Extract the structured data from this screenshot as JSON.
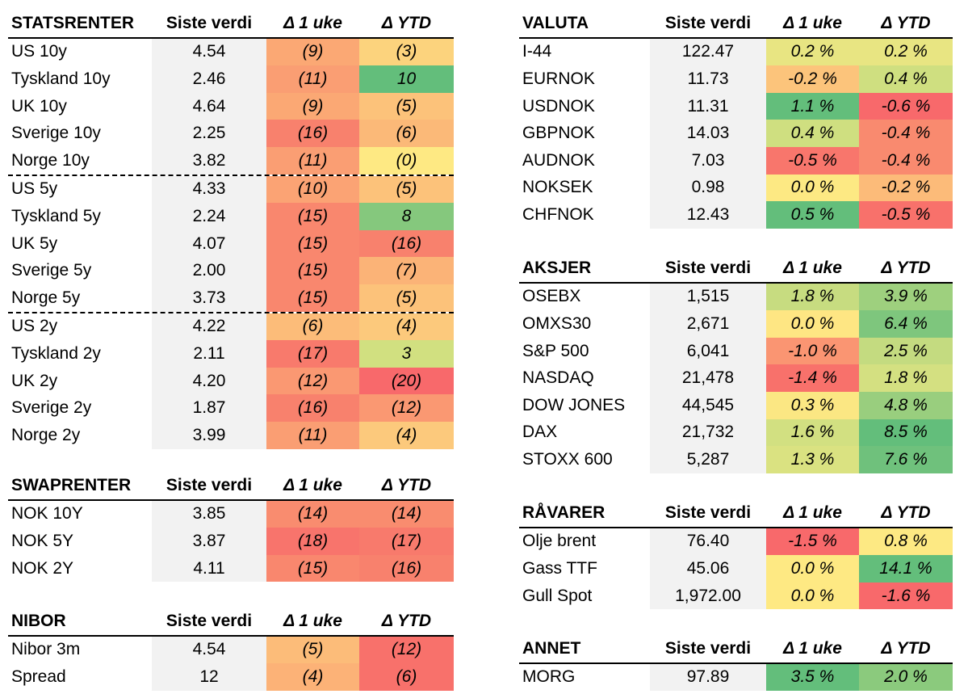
{
  "left_tables": [
    {
      "id": "statsrenter",
      "header": {
        "name": "STATSRENTER",
        "value": "Siste verdi",
        "d1": "Δ 1 uke",
        "d2": "Δ YTD"
      },
      "dashed_after": [
        4,
        9
      ],
      "rows": [
        {
          "name": "US 10y",
          "value": "4.54",
          "d1": "(9)",
          "d2": "(3)",
          "c1": "#fba874",
          "c2": "#fcd37d"
        },
        {
          "name": "Tyskland 10y",
          "value": "2.46",
          "d1": "(11)",
          "d2": "10",
          "c1": "#fa9e73",
          "c2": "#63be7b"
        },
        {
          "name": "UK 10y",
          "value": "4.64",
          "d1": "(9)",
          "d2": "(5)",
          "c1": "#fba874",
          "c2": "#fcc27a"
        },
        {
          "name": "Sverige 10y",
          "value": "2.25",
          "d1": "(16)",
          "d2": "(6)",
          "c1": "#f8816d",
          "c2": "#fbb978"
        },
        {
          "name": "Norge 10y",
          "value": "3.82",
          "d1": "(11)",
          "d2": "(0)",
          "c1": "#fa9e73",
          "c2": "#fee983"
        },
        {
          "name": "US 5y",
          "value": "4.33",
          "d1": "(10)",
          "d2": "(5)",
          "c1": "#fba374",
          "c2": "#fcc27a"
        },
        {
          "name": "Tyskland 5y",
          "value": "2.24",
          "d1": "(15)",
          "d2": "8",
          "c1": "#f9876e",
          "c2": "#85c87d"
        },
        {
          "name": "UK 5y",
          "value": "4.07",
          "d1": "(15)",
          "d2": "(16)",
          "c1": "#f9876e",
          "c2": "#f8816d"
        },
        {
          "name": "Sverige 5y",
          "value": "2.00",
          "d1": "(15)",
          "d2": "(7)",
          "c1": "#f9876e",
          "c2": "#fbb377"
        },
        {
          "name": "Norge 5y",
          "value": "3.73",
          "d1": "(15)",
          "d2": "(5)",
          "c1": "#f9876e",
          "c2": "#fcc27a"
        },
        {
          "name": "US 2y",
          "value": "4.22",
          "d1": "(6)",
          "d2": "(4)",
          "c1": "#fcbc79",
          "c2": "#fcc97c"
        },
        {
          "name": "Tyskland 2y",
          "value": "2.11",
          "d1": "(17)",
          "d2": "3",
          "c1": "#f87a6c",
          "c2": "#d1e080"
        },
        {
          "name": "UK 2y",
          "value": "4.20",
          "d1": "(12)",
          "d2": "(20)",
          "c1": "#fa9872",
          "c2": "#f8696b"
        },
        {
          "name": "Sverige 2y",
          "value": "1.87",
          "d1": "(16)",
          "d2": "(12)",
          "c1": "#f8816d",
          "c2": "#fa9872"
        },
        {
          "name": "Norge 2y",
          "value": "3.99",
          "d1": "(11)",
          "d2": "(4)",
          "c1": "#fa9e73",
          "c2": "#fcc97c"
        }
      ]
    },
    {
      "id": "swaprenter",
      "header": {
        "name": "SWAPRENTER",
        "value": "Siste verdi",
        "d1": "Δ 1 uke",
        "d2": "Δ YTD"
      },
      "dashed_after": [],
      "rows": [
        {
          "name": "NOK 10Y",
          "value": "3.85",
          "d1": "(14)",
          "d2": "(14)",
          "c1": "#f98c6f",
          "c2": "#f98c6f"
        },
        {
          "name": "NOK 5Y",
          "value": "3.87",
          "d1": "(18)",
          "d2": "(17)",
          "c1": "#f8746c",
          "c2": "#f87a6c"
        },
        {
          "name": "NOK 2Y",
          "value": "4.11",
          "d1": "(15)",
          "d2": "(16)",
          "c1": "#f9876e",
          "c2": "#f8816d"
        }
      ]
    },
    {
      "id": "nibor",
      "header": {
        "name": "NIBOR",
        "value": "Siste verdi",
        "d1": "Δ 1 uke",
        "d2": "Δ YTD"
      },
      "dashed_after": [],
      "rows": [
        {
          "name": "Nibor 3m",
          "value": "4.54",
          "d1": "(5)",
          "d2": "(12)",
          "c1": "#fcbc79",
          "c2": "#f8716b"
        },
        {
          "name": "Spread",
          "value": "12",
          "d1": "(4)",
          "d2": "(6)",
          "c1": "#fcb277",
          "c2": "#f8716b"
        }
      ]
    }
  ],
  "right_tables": [
    {
      "id": "valuta",
      "header": {
        "name": "VALUTA",
        "value": "Siste verdi",
        "d1": "Δ 1 uke",
        "d2": "Δ YTD"
      },
      "dashed_after": [],
      "rows": [
        {
          "name": "I-44",
          "value": "122.47",
          "d1": "0.2 %",
          "d2": "0.2 %",
          "c1": "#e8e582",
          "c2": "#e8e582"
        },
        {
          "name": "EURNOK",
          "value": "11.73",
          "d1": "-0.2 %",
          "d2": "0.4 %",
          "c1": "#fcc47b",
          "c2": "#cfdf80"
        },
        {
          "name": "USDNOK",
          "value": "11.31",
          "d1": "1.1 %",
          "d2": "-0.6 %",
          "c1": "#63be7b",
          "c2": "#f8696b"
        },
        {
          "name": "GBPNOK",
          "value": "14.03",
          "d1": "0.4 %",
          "d2": "-0.4 %",
          "c1": "#cfdf80",
          "c2": "#f98a6f"
        },
        {
          "name": "AUDNOK",
          "value": "7.03",
          "d1": "-0.5 %",
          "d2": "-0.4 %",
          "c1": "#f8766c",
          "c2": "#f98a6f"
        },
        {
          "name": "NOKSEK",
          "value": "0.98",
          "d1": "0.0 %",
          "d2": "-0.2 %",
          "c1": "#fde983",
          "c2": "#fcbb79"
        },
        {
          "name": "CHFNOK",
          "value": "12.43",
          "d1": "0.5 %",
          "d2": "-0.5 %",
          "c1": "#63be7b",
          "c2": "#f8716b"
        }
      ]
    },
    {
      "id": "aksjer",
      "header": {
        "name": "AKSJER",
        "value": "Siste verdi",
        "d1": "Δ 1 uke",
        "d2": "Δ YTD"
      },
      "dashed_after": [],
      "rows": [
        {
          "name": "OSEBX",
          "value": "1,515",
          "d1": "1.8 %",
          "d2": "3.9 %",
          "c1": "#c7dc80",
          "c2": "#9ed07e"
        },
        {
          "name": "OMXS30",
          "value": "2,671",
          "d1": "0.0 %",
          "d2": "6.4 %",
          "c1": "#fee683",
          "c2": "#7ec67d"
        },
        {
          "name": "S&P 500",
          "value": "6,041",
          "d1": "-1.0 %",
          "d2": "2.5 %",
          "c1": "#fa9572",
          "c2": "#c4db80"
        },
        {
          "name": "NASDAQ",
          "value": "21,478",
          "d1": "-1.4 %",
          "d2": "1.8 %",
          "c1": "#f8716b",
          "c2": "#d4e081"
        },
        {
          "name": "DOW JONES",
          "value": "44,545",
          "d1": "0.3 %",
          "d2": "4.8 %",
          "c1": "#fbe783",
          "c2": "#99ce7e"
        },
        {
          "name": "DAX",
          "value": "21,732",
          "d1": "1.6 %",
          "d2": "8.5 %",
          "c1": "#d2e081",
          "c2": "#63be7b"
        },
        {
          "name": "STOXX 600",
          "value": "5,287",
          "d1": "1.3 %",
          "d2": "7.6 %",
          "c1": "#dae281",
          "c2": "#6fc17c"
        }
      ]
    },
    {
      "id": "ravarer",
      "header": {
        "name": "RÅVARER",
        "value": "Siste verdi",
        "d1": "Δ 1 uke",
        "d2": "Δ YTD"
      },
      "dashed_after": [],
      "rows": [
        {
          "name": "Olje brent",
          "value": "76.40",
          "d1": "-1.5 %",
          "d2": "0.8 %",
          "c1": "#f8696b",
          "c2": "#fde983"
        },
        {
          "name": "Gass TTF",
          "value": "45.06",
          "d1": "0.0 %",
          "d2": "14.1 %",
          "c1": "#fee983",
          "c2": "#63be7b"
        },
        {
          "name": "Gull Spot",
          "value": "1,972.00",
          "d1": "0.0 %",
          "d2": "-1.6 %",
          "c1": "#fee983",
          "c2": "#f8696b"
        }
      ]
    },
    {
      "id": "annet",
      "header": {
        "name": "ANNET",
        "value": "Siste verdi",
        "d1": "Δ 1 uke",
        "d2": "Δ YTD"
      },
      "dashed_after": [],
      "rows": [
        {
          "name": "MORG",
          "value": "97.89",
          "d1": "3.5 %",
          "d2": "2.0 %",
          "c1": "#63be7b",
          "c2": "#8bca7d"
        }
      ]
    }
  ]
}
